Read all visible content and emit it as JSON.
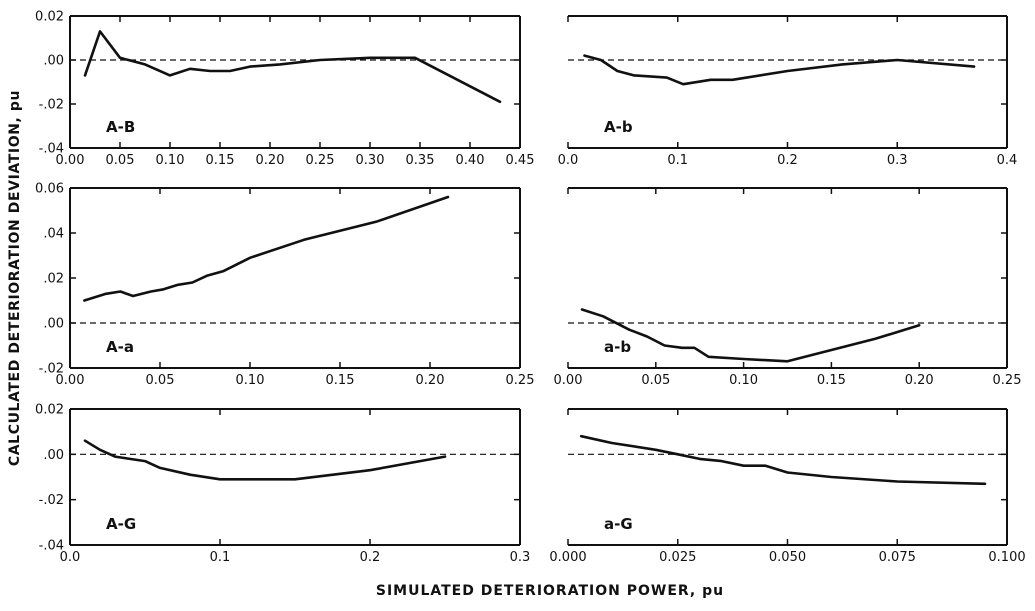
{
  "figure": {
    "ylabel": "CALCULATED DETERIORATION DEVIATION, pu",
    "xlabel": "SIMULATED DETERIORATION POWER, pu"
  },
  "chart_data": [
    {
      "type": "line",
      "annotation": "A-B",
      "xlim": [
        0.0,
        0.45
      ],
      "ylim": [
        -0.04,
        0.02
      ],
      "xticks": [
        "0.00",
        "0.05",
        "0.10",
        "0.15",
        "0.20",
        "0.25",
        "0.30",
        "0.35",
        "0.40",
        "0.45"
      ],
      "yticks": [
        "0.02",
        ".00",
        "-.02",
        "-.04"
      ],
      "ytick_values": [
        0.02,
        0.0,
        -0.02,
        -0.04
      ],
      "x": [
        0.015,
        0.03,
        0.05,
        0.075,
        0.1,
        0.12,
        0.14,
        0.16,
        0.18,
        0.21,
        0.25,
        0.3,
        0.345,
        0.43
      ],
      "y": [
        -0.007,
        0.013,
        0.001,
        -0.002,
        -0.007,
        -0.004,
        -0.005,
        -0.005,
        -0.003,
        -0.002,
        0.0,
        0.001,
        0.001,
        -0.019
      ],
      "reference_line": 0.0
    },
    {
      "type": "line",
      "annotation": "A-b",
      "xlim": [
        0.0,
        0.4
      ],
      "ylim": [
        -0.04,
        0.02
      ],
      "xticks": [
        "0.0",
        "0.1",
        "0.2",
        "0.3",
        "0.4"
      ],
      "yticks": [],
      "ytick_values": [
        0.02,
        0.0,
        -0.02,
        -0.04
      ],
      "x": [
        0.015,
        0.03,
        0.045,
        0.06,
        0.09,
        0.105,
        0.13,
        0.15,
        0.2,
        0.25,
        0.3,
        0.37
      ],
      "y": [
        0.002,
        0.0,
        -0.005,
        -0.007,
        -0.008,
        -0.011,
        -0.009,
        -0.009,
        -0.005,
        -0.002,
        0.0,
        -0.003
      ],
      "reference_line": 0.0
    },
    {
      "type": "line",
      "annotation": "A-a",
      "xlim": [
        0.0,
        0.25
      ],
      "ylim": [
        -0.02,
        0.06
      ],
      "xticks": [
        "0.00",
        "0.05",
        "0.10",
        "0.15",
        "0.20",
        "0.25"
      ],
      "yticks": [
        "0.06",
        ".04",
        ".02",
        ".00",
        "-.02"
      ],
      "ytick_values": [
        0.06,
        0.04,
        0.02,
        0.0,
        -0.02
      ],
      "x": [
        0.008,
        0.02,
        0.028,
        0.035,
        0.045,
        0.052,
        0.06,
        0.068,
        0.076,
        0.085,
        0.1,
        0.13,
        0.17,
        0.21
      ],
      "y": [
        0.01,
        0.013,
        0.014,
        0.012,
        0.014,
        0.015,
        0.017,
        0.018,
        0.021,
        0.023,
        0.029,
        0.037,
        0.045,
        0.056
      ],
      "reference_line": 0.0
    },
    {
      "type": "line",
      "annotation": "a-b",
      "xlim": [
        0.0,
        0.25
      ],
      "ylim": [
        -0.02,
        0.06
      ],
      "xticks": [
        "0.00",
        "0.05",
        "0.10",
        "0.15",
        "0.20",
        "0.25"
      ],
      "yticks": [],
      "ytick_values": [
        0.06,
        0.04,
        0.02,
        0.0,
        -0.02
      ],
      "x": [
        0.008,
        0.02,
        0.035,
        0.045,
        0.055,
        0.065,
        0.072,
        0.08,
        0.1,
        0.125,
        0.15,
        0.175,
        0.2
      ],
      "y": [
        0.006,
        0.003,
        -0.003,
        -0.006,
        -0.01,
        -0.011,
        -0.011,
        -0.015,
        -0.016,
        -0.017,
        -0.012,
        -0.007,
        -0.001
      ],
      "reference_line": 0.0
    },
    {
      "type": "line",
      "annotation": "A-G",
      "xlim": [
        0.0,
        0.3
      ],
      "ylim": [
        -0.04,
        0.02
      ],
      "xticks": [
        "0.0",
        "0.1",
        "0.2",
        "0.3"
      ],
      "yticks": [
        "0.02",
        ".00",
        "-.02",
        "-.04"
      ],
      "ytick_values": [
        0.02,
        0.0,
        -0.02,
        -0.04
      ],
      "x": [
        0.01,
        0.02,
        0.03,
        0.04,
        0.05,
        0.06,
        0.08,
        0.1,
        0.15,
        0.2,
        0.25
      ],
      "y": [
        0.006,
        0.002,
        -0.001,
        -0.002,
        -0.003,
        -0.006,
        -0.009,
        -0.011,
        -0.011,
        -0.007,
        -0.001
      ],
      "reference_line": 0.0
    },
    {
      "type": "line",
      "annotation": "a-G",
      "xlim": [
        0.0,
        0.1
      ],
      "ylim": [
        -0.04,
        0.02
      ],
      "xticks": [
        "0.000",
        "0.025",
        "0.050",
        "0.075",
        "0.100"
      ],
      "yticks": [],
      "ytick_values": [
        0.02,
        0.0,
        -0.02,
        -0.04
      ],
      "x": [
        0.003,
        0.01,
        0.02,
        0.025,
        0.03,
        0.035,
        0.04,
        0.045,
        0.05,
        0.06,
        0.075,
        0.095
      ],
      "y": [
        0.008,
        0.005,
        0.002,
        0.0,
        -0.002,
        -0.003,
        -0.005,
        -0.005,
        -0.008,
        -0.01,
        -0.012,
        -0.013
      ],
      "reference_line": 0.0
    }
  ]
}
